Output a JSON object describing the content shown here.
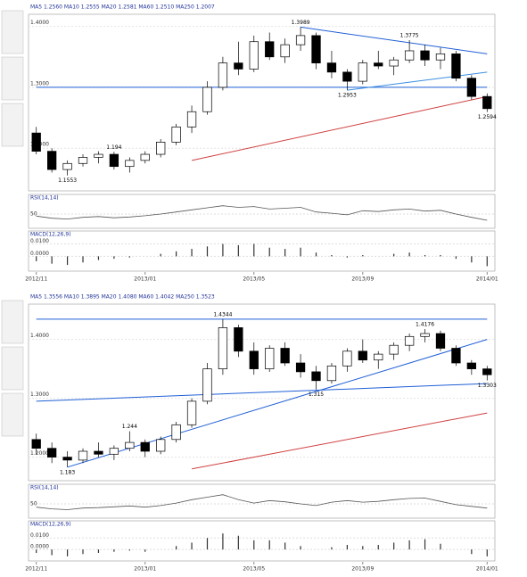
{
  "chart_data": [
    {
      "type": "candlestick",
      "header": "MA5 1.2560  MA10 1.2555  MA20 1.2581  MA60 1.2510  MA250 1.2007",
      "open": [
        1.225,
        1.195,
        1.165,
        1.175,
        1.185,
        1.19,
        1.17,
        1.18,
        1.19,
        1.21,
        1.235,
        1.26,
        1.3,
        1.34,
        1.33,
        1.375,
        1.35,
        1.37,
        1.385,
        1.34,
        1.325,
        1.31,
        1.34,
        1.335,
        1.345,
        1.36,
        1.345,
        1.355,
        1.315,
        1.285
      ],
      "high": [
        1.235,
        1.2,
        1.18,
        1.19,
        1.195,
        1.194,
        1.185,
        1.195,
        1.215,
        1.24,
        1.27,
        1.31,
        1.35,
        1.375,
        1.385,
        1.39,
        1.38,
        1.3989,
        1.39,
        1.36,
        1.33,
        1.345,
        1.36,
        1.35,
        1.3775,
        1.37,
        1.365,
        1.36,
        1.32,
        1.29
      ],
      "low": [
        1.19,
        1.16,
        1.1553,
        1.17,
        1.175,
        1.165,
        1.16,
        1.175,
        1.185,
        1.205,
        1.225,
        1.255,
        1.295,
        1.32,
        1.325,
        1.345,
        1.34,
        1.36,
        1.33,
        1.315,
        1.2953,
        1.305,
        1.33,
        1.32,
        1.34,
        1.335,
        1.33,
        1.31,
        1.28,
        1.2594
      ],
      "close": [
        1.195,
        1.165,
        1.175,
        1.185,
        1.19,
        1.17,
        1.18,
        1.19,
        1.21,
        1.235,
        1.26,
        1.3,
        1.34,
        1.33,
        1.375,
        1.35,
        1.37,
        1.385,
        1.34,
        1.325,
        1.31,
        1.34,
        1.335,
        1.345,
        1.36,
        1.345,
        1.355,
        1.315,
        1.285,
        1.265
      ],
      "up_color": "#ffffff",
      "down_color": "#000000",
      "ylim": [
        1.13,
        1.42
      ],
      "yticks": [
        {
          "value": 1.2,
          "label": "1.2000"
        },
        {
          "value": 1.3,
          "label": "1.3000"
        },
        {
          "value": 1.4,
          "label": "1.4000"
        }
      ],
      "xticks": [
        {
          "value": 0,
          "label": "2012/11"
        },
        {
          "value": 7,
          "label": "2013/01"
        },
        {
          "value": 14,
          "label": "2013/05"
        },
        {
          "value": 21,
          "label": "2013/09"
        },
        {
          "value": 29,
          "label": "2014/01"
        }
      ],
      "annotations": [
        {
          "index": 17,
          "value": 1.3989
        },
        {
          "index": 24,
          "value": 1.3775
        },
        {
          "index": 20,
          "value": 1.2953
        },
        {
          "index": 29,
          "value": 1.2594
        },
        {
          "index": 5,
          "value": 1.194
        },
        {
          "index": 2,
          "value": 1.1553
        }
      ],
      "trendlines": [
        {
          "x": [
            17,
            29
          ],
          "y": [
            1.3989,
            1.355
          ],
          "color": "#1f5fd6"
        },
        {
          "x": [
            0,
            29
          ],
          "y": [
            1.3,
            1.3
          ],
          "color": "#1f5fd6"
        },
        {
          "x": [
            20,
            29
          ],
          "y": [
            1.2953,
            1.325
          ],
          "color": "#3a8de0"
        },
        {
          "x": [
            10,
            29
          ],
          "y": [
            1.18,
            1.285
          ],
          "color": "#d04040"
        }
      ],
      "rsi_title": "RSI(14,14)",
      "rsi": [
        45,
        40,
        38,
        42,
        44,
        41,
        43,
        46,
        50,
        55,
        60,
        65,
        70,
        66,
        68,
        62,
        64,
        66,
        55,
        52,
        48,
        58,
        56,
        60,
        62,
        57,
        59,
        50,
        42,
        35
      ],
      "rsi_ylim": [
        20,
        80
      ],
      "rsi_yticks": [
        50
      ],
      "macd_title": "MACD(12,26,9)",
      "macd": [
        -0.004,
        -0.006,
        -0.007,
        -0.005,
        -0.003,
        -0.002,
        -0.001,
        0.0,
        0.002,
        0.004,
        0.006,
        0.008,
        0.01,
        0.009,
        0.01,
        0.007,
        0.006,
        0.007,
        0.003,
        0.001,
        -0.001,
        0.001,
        0.0,
        0.002,
        0.003,
        0.001,
        0.001,
        -0.002,
        -0.005,
        -0.008
      ],
      "macd_ylim": [
        -0.012,
        0.014
      ],
      "macd_yticks": [
        {
          "value": 0.01,
          "label": "0.0100"
        },
        {
          "value": 0,
          "label": "0.0000"
        }
      ]
    },
    {
      "type": "candlestick",
      "header": "MA5 1.3556  MA10 1.3895  MA20 1.4080  MA60 1.4042  MA250 1.3523",
      "open": [
        1.23,
        1.215,
        1.2,
        1.195,
        1.21,
        1.205,
        1.215,
        1.225,
        1.21,
        1.23,
        1.255,
        1.295,
        1.35,
        1.42,
        1.38,
        1.35,
        1.385,
        1.36,
        1.345,
        1.33,
        1.355,
        1.38,
        1.365,
        1.375,
        1.39,
        1.405,
        1.41,
        1.385,
        1.36,
        1.35
      ],
      "high": [
        1.24,
        1.225,
        1.21,
        1.215,
        1.225,
        1.22,
        1.244,
        1.23,
        1.235,
        1.26,
        1.3,
        1.36,
        1.4344,
        1.425,
        1.395,
        1.39,
        1.395,
        1.375,
        1.355,
        1.36,
        1.385,
        1.4,
        1.38,
        1.395,
        1.41,
        1.4176,
        1.415,
        1.39,
        1.365,
        1.355
      ],
      "low": [
        1.205,
        1.19,
        1.183,
        1.19,
        1.2,
        1.195,
        1.21,
        1.2,
        1.205,
        1.225,
        1.25,
        1.29,
        1.34,
        1.37,
        1.34,
        1.345,
        1.355,
        1.335,
        1.315,
        1.325,
        1.345,
        1.36,
        1.35,
        1.365,
        1.38,
        1.395,
        1.38,
        1.355,
        1.34,
        1.3303
      ],
      "close": [
        1.215,
        1.2,
        1.195,
        1.21,
        1.205,
        1.215,
        1.225,
        1.21,
        1.23,
        1.255,
        1.295,
        1.35,
        1.42,
        1.38,
        1.35,
        1.385,
        1.36,
        1.345,
        1.33,
        1.355,
        1.38,
        1.365,
        1.375,
        1.39,
        1.405,
        1.41,
        1.385,
        1.36,
        1.35,
        1.34
      ],
      "up_color": "#ffffff",
      "down_color": "#000000",
      "ylim": [
        1.16,
        1.46
      ],
      "yticks": [
        {
          "value": 1.2,
          "label": "1.2000"
        },
        {
          "value": 1.3,
          "label": "1.3000"
        },
        {
          "value": 1.4,
          "label": "1.4000"
        }
      ],
      "xticks": [
        {
          "value": 0,
          "label": "2012/11"
        },
        {
          "value": 7,
          "label": "2013/01"
        },
        {
          "value": 14,
          "label": "2013/05"
        },
        {
          "value": 21,
          "label": "2013/09"
        },
        {
          "value": 29,
          "label": "2014/01"
        }
      ],
      "annotations": [
        {
          "index": 12,
          "value": 1.4344
        },
        {
          "index": 25,
          "value": 1.4176
        },
        {
          "index": 18,
          "value": 1.315
        },
        {
          "index": 29,
          "value": 1.3303
        },
        {
          "index": 6,
          "value": 1.244
        },
        {
          "index": 2,
          "value": 1.183
        }
      ],
      "trendlines": [
        {
          "x": [
            0,
            29
          ],
          "y": [
            1.4344,
            1.4344
          ],
          "color": "#1f5fd6"
        },
        {
          "x": [
            2,
            29
          ],
          "y": [
            1.183,
            1.4
          ],
          "color": "#1f5fd6"
        },
        {
          "x": [
            0,
            29
          ],
          "y": [
            1.295,
            1.325
          ],
          "color": "#1f5fd6"
        },
        {
          "x": [
            10,
            29
          ],
          "y": [
            1.18,
            1.275
          ],
          "color": "#d04040"
        }
      ],
      "rsi_title": "RSI(14,14)",
      "rsi": [
        42,
        38,
        36,
        40,
        41,
        43,
        45,
        42,
        46,
        52,
        60,
        66,
        72,
        60,
        52,
        58,
        55,
        50,
        46,
        54,
        58,
        54,
        56,
        60,
        63,
        64,
        56,
        48,
        44,
        40
      ],
      "rsi_ylim": [
        20,
        80
      ],
      "rsi_yticks": [
        50
      ],
      "macd_title": "MACD(12,26,9)",
      "macd": [
        -0.003,
        -0.005,
        -0.006,
        -0.004,
        -0.003,
        -0.002,
        -0.001,
        -0.002,
        0.0,
        0.003,
        0.006,
        0.01,
        0.014,
        0.012,
        0.008,
        0.008,
        0.006,
        0.003,
        0.0,
        0.002,
        0.004,
        0.003,
        0.004,
        0.006,
        0.008,
        0.009,
        0.005,
        0.0,
        -0.004,
        -0.006
      ],
      "macd_ylim": [
        -0.01,
        0.018
      ],
      "macd_yticks": [
        {
          "value": 0.01,
          "label": "0.0100"
        },
        {
          "value": 0,
          "label": "0.0000"
        }
      ]
    }
  ]
}
